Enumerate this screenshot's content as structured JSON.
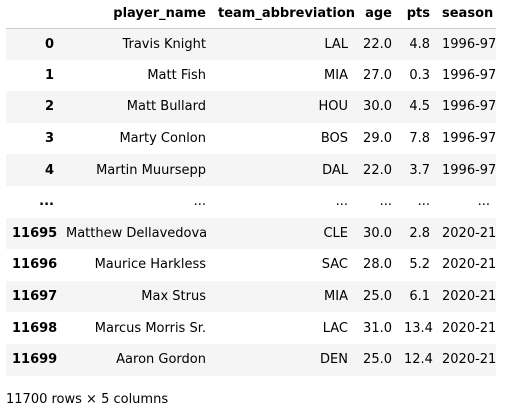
{
  "table": {
    "columns": [
      "",
      "player_name",
      "team_abbreviation",
      "age",
      "pts",
      "season"
    ],
    "rows": [
      {
        "index": "0",
        "player_name": "Travis Knight",
        "team_abbreviation": "LAL",
        "age": "22.0",
        "pts": "4.8",
        "season": "1996-97"
      },
      {
        "index": "1",
        "player_name": "Matt Fish",
        "team_abbreviation": "MIA",
        "age": "27.0",
        "pts": "0.3",
        "season": "1996-97"
      },
      {
        "index": "2",
        "player_name": "Matt Bullard",
        "team_abbreviation": "HOU",
        "age": "30.0",
        "pts": "4.5",
        "season": "1996-97"
      },
      {
        "index": "3",
        "player_name": "Marty Conlon",
        "team_abbreviation": "BOS",
        "age": "29.0",
        "pts": "7.8",
        "season": "1996-97"
      },
      {
        "index": "4",
        "player_name": "Martin Muursepp",
        "team_abbreviation": "DAL",
        "age": "22.0",
        "pts": "3.7",
        "season": "1996-97"
      },
      {
        "index": "...",
        "player_name": "...",
        "team_abbreviation": "...",
        "age": "...",
        "pts": "...",
        "season": "..."
      },
      {
        "index": "11695",
        "player_name": "Matthew Dellavedova",
        "team_abbreviation": "CLE",
        "age": "30.0",
        "pts": "2.8",
        "season": "2020-21"
      },
      {
        "index": "11696",
        "player_name": "Maurice Harkless",
        "team_abbreviation": "SAC",
        "age": "28.0",
        "pts": "5.2",
        "season": "2020-21"
      },
      {
        "index": "11697",
        "player_name": "Max Strus",
        "team_abbreviation": "MIA",
        "age": "25.0",
        "pts": "6.1",
        "season": "2020-21"
      },
      {
        "index": "11698",
        "player_name": "Marcus Morris Sr.",
        "team_abbreviation": "LAC",
        "age": "31.0",
        "pts": "13.4",
        "season": "2020-21"
      },
      {
        "index": "11699",
        "player_name": "Aaron Gordon",
        "team_abbreviation": "DEN",
        "age": "25.0",
        "pts": "12.4",
        "season": "2020-21"
      }
    ]
  },
  "footer": {
    "shape_text": "11700 rows × 5 columns"
  }
}
